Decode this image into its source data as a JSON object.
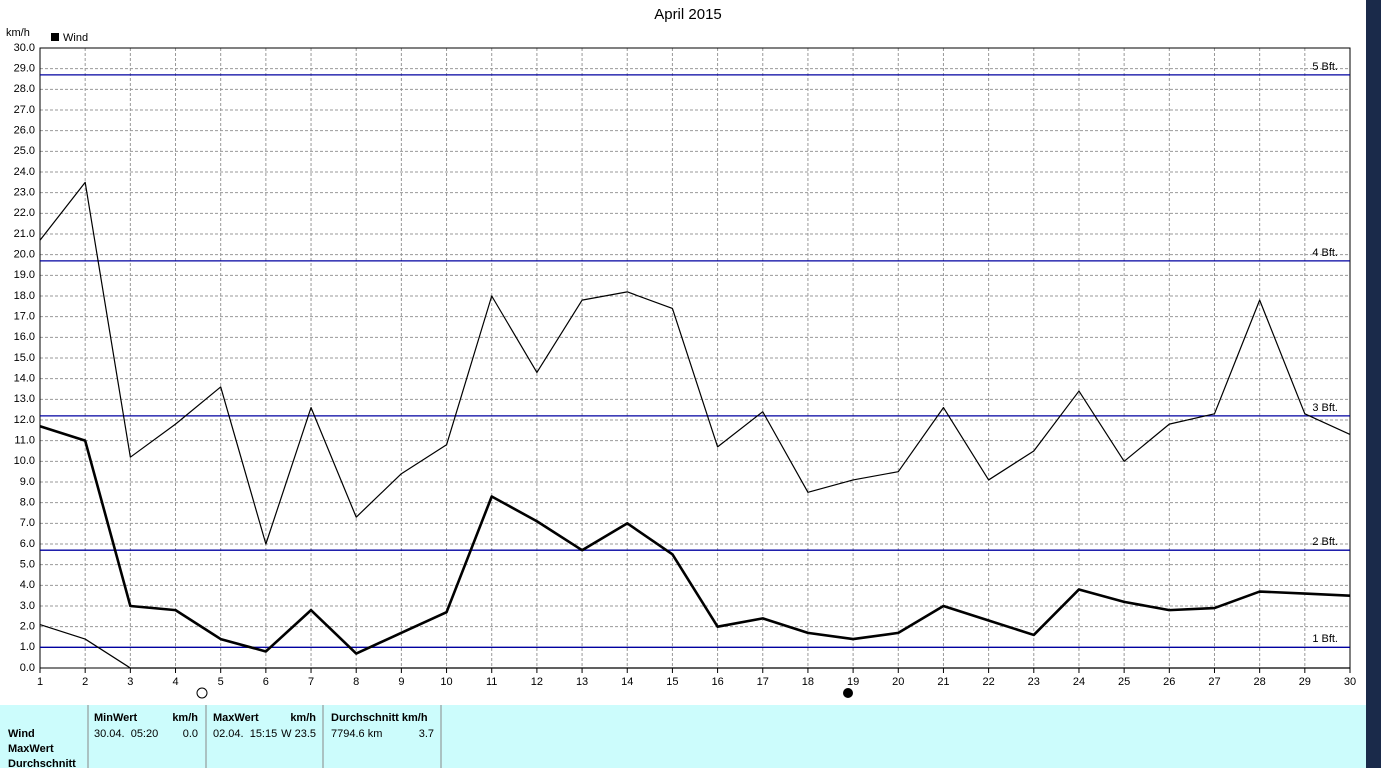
{
  "chart_data": {
    "type": "line",
    "title": "April 2015",
    "y_label": "km/h",
    "legend": "Wind",
    "x": [
      1,
      2,
      3,
      4,
      5,
      6,
      7,
      8,
      9,
      10,
      11,
      12,
      13,
      14,
      15,
      16,
      17,
      18,
      19,
      20,
      21,
      22,
      23,
      24,
      25,
      26,
      27,
      28,
      29,
      30
    ],
    "series": [
      {
        "color": "#000000",
        "line_width": 1.2,
        "values": [
          20.7,
          23.5,
          10.2,
          11.8,
          13.6,
          6.0,
          12.6,
          7.3,
          9.4,
          10.8,
          18.0,
          14.3,
          17.8,
          18.2,
          17.4,
          10.7,
          12.4,
          8.5,
          9.1,
          9.5,
          12.6,
          9.1,
          10.5,
          13.4,
          10.0,
          11.8,
          12.3,
          17.8,
          12.3,
          11.3
        ]
      },
      {
        "color": "#000000",
        "line_width": 2.6,
        "values": [
          11.7,
          11.0,
          3.0,
          2.8,
          1.4,
          0.8,
          2.8,
          0.7,
          1.7,
          2.7,
          8.3,
          7.1,
          5.7,
          7.0,
          5.5,
          2.0,
          2.4,
          1.7,
          1.4,
          1.7,
          3.0,
          2.3,
          1.6,
          3.8,
          3.2,
          2.8,
          2.9,
          3.7,
          3.6,
          3.5
        ]
      },
      {
        "color": "#000000",
        "line_width": 1.2,
        "values": [
          2.1,
          1.4,
          0.0,
          0.0,
          0.0,
          0.0,
          0.0,
          0.0,
          0.0,
          0.0,
          0.0,
          0.0,
          0.0,
          0.0,
          0.0,
          0.0,
          0.0,
          0.0,
          0.0,
          0.0,
          0.0,
          0.0,
          0.0,
          0.0,
          0.0,
          0.0,
          0.0,
          0.0,
          0.0,
          0.0
        ]
      }
    ],
    "reference_lines": [
      {
        "value": 1.0,
        "label": "1 Bft."
      },
      {
        "value": 5.7,
        "label": "2 Bft."
      },
      {
        "value": 12.2,
        "label": "3 Bft."
      },
      {
        "value": 19.7,
        "label": "4 Bft."
      },
      {
        "value": 28.7,
        "label": "5 Bft."
      }
    ],
    "reference_color": "#0000a0",
    "xlim": [
      1,
      30
    ],
    "xticks": [
      1,
      2,
      3,
      4,
      5,
      6,
      7,
      8,
      9,
      10,
      11,
      12,
      13,
      14,
      15,
      16,
      17,
      18,
      19,
      20,
      21,
      22,
      23,
      24,
      25,
      26,
      27,
      28,
      29,
      30
    ],
    "ylim": [
      0,
      30
    ],
    "yticks": [
      {
        "value": 0,
        "label": "0.0"
      },
      {
        "value": 1,
        "label": "1.0"
      },
      {
        "value": 2,
        "label": "2.0"
      },
      {
        "value": 3,
        "label": "3.0"
      },
      {
        "value": 4,
        "label": "4.0"
      },
      {
        "value": 5,
        "label": "5.0"
      },
      {
        "value": 6,
        "label": "6.0"
      },
      {
        "value": 7,
        "label": "7.0"
      },
      {
        "value": 8,
        "label": "8.0"
      },
      {
        "value": 9,
        "label": "9.0"
      },
      {
        "value": 10,
        "label": "10.0"
      },
      {
        "value": 11,
        "label": "11.0"
      },
      {
        "value": 12,
        "label": "12.0"
      },
      {
        "value": 13,
        "label": "13.0"
      },
      {
        "value": 14,
        "label": "14.0"
      },
      {
        "value": 15,
        "label": "15.0"
      },
      {
        "value": 16,
        "label": "16.0"
      },
      {
        "value": 17,
        "label": "17.0"
      },
      {
        "value": 18,
        "label": "18.0"
      },
      {
        "value": 19,
        "label": "19.0"
      },
      {
        "value": 20,
        "label": "20.0"
      },
      {
        "value": 21,
        "label": "21.0"
      },
      {
        "value": 22,
        "label": "22.0"
      },
      {
        "value": 23,
        "label": "23.0"
      },
      {
        "value": 24,
        "label": "24.0"
      },
      {
        "value": 25,
        "label": "25.0"
      },
      {
        "value": 26,
        "label": "26.0"
      },
      {
        "value": 27,
        "label": "27.0"
      },
      {
        "value": 28,
        "label": "28.0"
      },
      {
        "value": 29,
        "label": "29.0"
      },
      {
        "value": 30,
        "label": "30.0"
      }
    ],
    "grid": true
  },
  "table": {
    "headers": [
      "MinWert",
      "km/h",
      "MaxWert",
      "km/h",
      "Durchschnitt km/h"
    ],
    "rows": [
      [
        "Wind",
        "30.04.  05:20",
        "0.0",
        "02.04.  15:15",
        "W 23.5",
        "7794.6 km",
        "3.7"
      ],
      [
        "MaxWert"
      ],
      [
        "Durchschnitt"
      ]
    ]
  }
}
